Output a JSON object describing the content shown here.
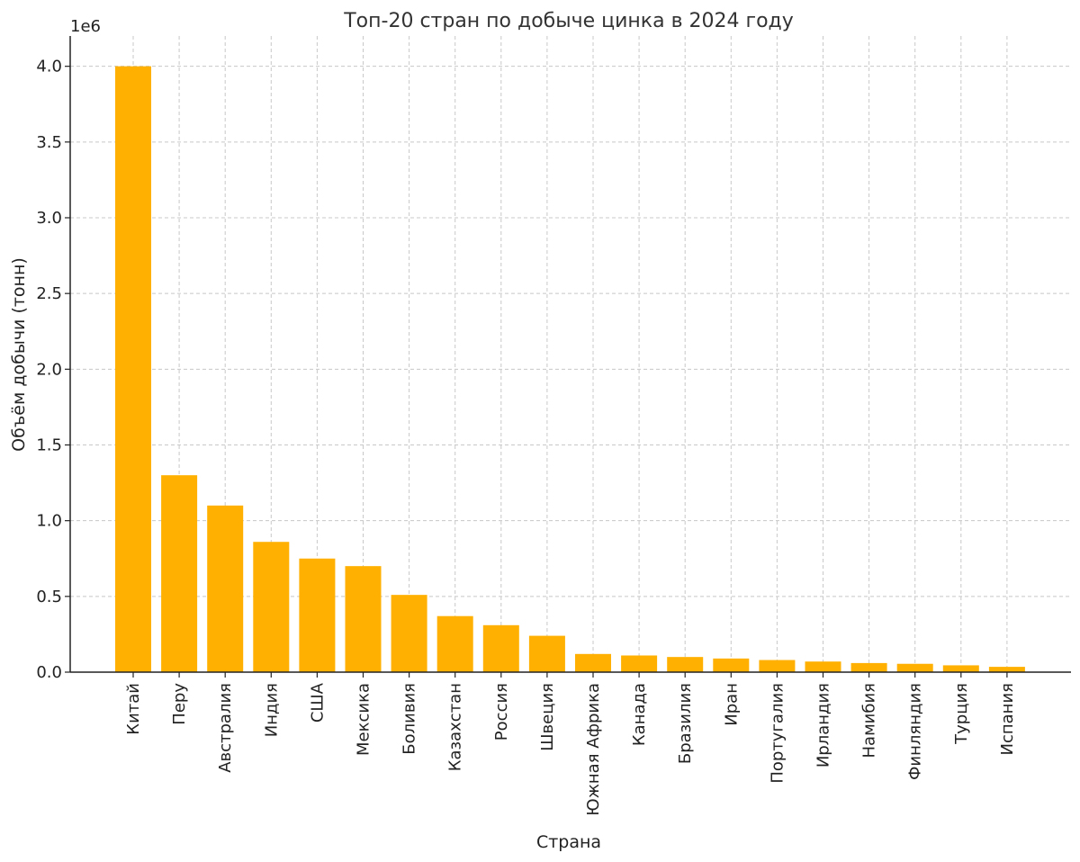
{
  "chart_data": {
    "type": "bar",
    "title": "Топ-20 стран по добыче цинка в 2024 году",
    "xlabel": "Страна",
    "ylabel": "Объём добычи (тонн)",
    "y_offset_label": "1e6",
    "ylim": [
      0,
      4200000
    ],
    "yticks": [
      0,
      500000,
      1000000,
      1500000,
      2000000,
      2500000,
      3000000,
      3500000,
      4000000
    ],
    "ytick_labels": [
      "0.0",
      "0.5",
      "1.0",
      "1.5",
      "2.0",
      "2.5",
      "3.0",
      "3.5",
      "4.0"
    ],
    "grid": true,
    "bar_color": "#FFB000",
    "categories": [
      "Китай",
      "Перу",
      "Австралия",
      "Индия",
      "США",
      "Мексика",
      "Боливия",
      "Казахстан",
      "Россия",
      "Швеция",
      "Южная Африка",
      "Канада",
      "Бразилия",
      "Иран",
      "Португалия",
      "Ирландия",
      "Намибия",
      "Финляндия",
      "Турция",
      "Испания"
    ],
    "values": [
      4000000,
      1300000,
      1100000,
      860000,
      750000,
      700000,
      510000,
      370000,
      310000,
      240000,
      120000,
      110000,
      100000,
      90000,
      80000,
      70000,
      60000,
      55000,
      45000,
      35000
    ]
  }
}
